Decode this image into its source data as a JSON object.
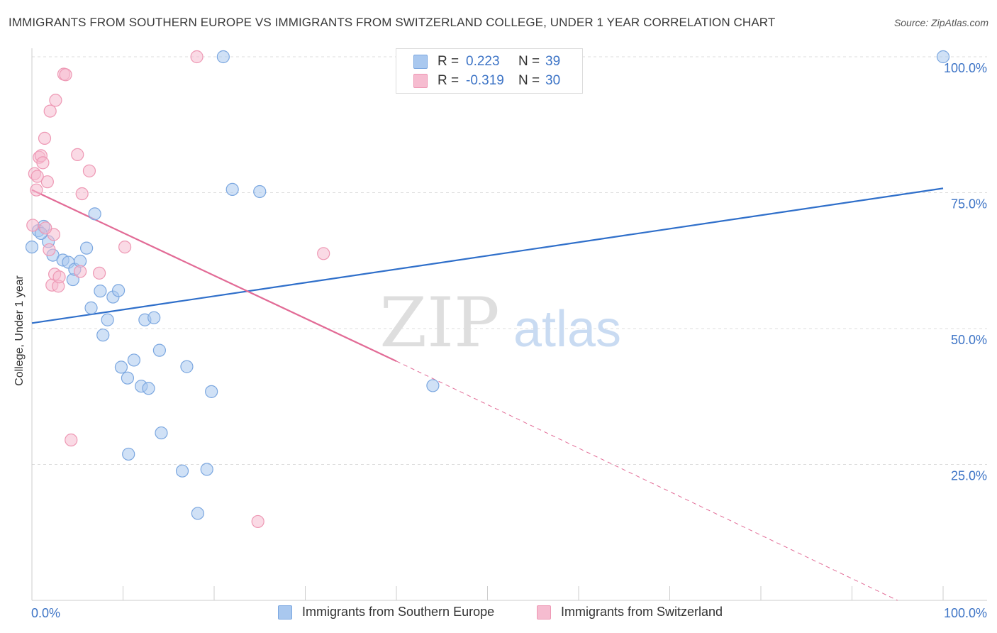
{
  "header": {
    "title": "IMMIGRANTS FROM SOUTHERN EUROPE VS IMMIGRANTS FROM SWITZERLAND COLLEGE, UNDER 1 YEAR CORRELATION CHART",
    "source": "Source: ZipAtlas.com"
  },
  "watermark": {
    "zip": "ZIP",
    "atlas": "atlas"
  },
  "legend": {
    "rows": [
      {
        "r_label": "R =",
        "r_value": "0.223",
        "n_label": "N =",
        "n_value": "39"
      },
      {
        "r_label": "R =",
        "r_value": "-0.319",
        "n_label": "N =",
        "n_value": "30"
      }
    ]
  },
  "bottom_legend": {
    "series1": "Immigrants from Southern Europe",
    "series2": "Immigrants from Switzerland"
  },
  "colors": {
    "blue_fill": "#a9c8ef",
    "blue_stroke": "#7ba7e0",
    "blue_line": "#2f6fca",
    "pink_fill": "#f6bcd0",
    "pink_stroke": "#ee98b4",
    "pink_line": "#e26b96",
    "tick_label": "#3d74c6",
    "grid": "#dddddd"
  },
  "chart_data": {
    "type": "scatter",
    "title": "IMMIGRANTS FROM SOUTHERN EUROPE VS IMMIGRANTS FROM SWITZERLAND COLLEGE, UNDER 1 YEAR CORRELATION CHART",
    "xlabel": "",
    "ylabel": "College, Under 1 year",
    "xlim": [
      0,
      100
    ],
    "ylim": [
      0,
      100
    ],
    "x_tick_labels": [
      "0.0%",
      "100.0%"
    ],
    "y_tick_labels": [
      "25.0%",
      "50.0%",
      "75.0%",
      "100.0%"
    ],
    "y_tick_values": [
      25,
      50,
      75,
      100
    ],
    "series": [
      {
        "name": "Immigrants from Southern Europe",
        "color": "blue",
        "points": [
          [
            0.0,
            65.0
          ],
          [
            0.7,
            68.0
          ],
          [
            1.3,
            68.8
          ],
          [
            1.8,
            66.0
          ],
          [
            2.3,
            63.5
          ],
          [
            3.4,
            62.6
          ],
          [
            4.0,
            62.2
          ],
          [
            4.5,
            59.0
          ],
          [
            4.7,
            60.9
          ],
          [
            5.3,
            62.4
          ],
          [
            6.0,
            64.8
          ],
          [
            6.5,
            53.8
          ],
          [
            6.9,
            71.1
          ],
          [
            7.5,
            56.9
          ],
          [
            7.8,
            48.8
          ],
          [
            8.3,
            51.6
          ],
          [
            8.9,
            55.8
          ],
          [
            9.5,
            57.0
          ],
          [
            9.8,
            42.9
          ],
          [
            10.5,
            40.9
          ],
          [
            10.6,
            26.9
          ],
          [
            11.2,
            44.2
          ],
          [
            12.0,
            39.4
          ],
          [
            12.4,
            51.6
          ],
          [
            12.8,
            39.0
          ],
          [
            13.4,
            52.0
          ],
          [
            14.0,
            46.0
          ],
          [
            14.2,
            30.8
          ],
          [
            16.5,
            23.8
          ],
          [
            17.0,
            43.0
          ],
          [
            18.2,
            16.0
          ],
          [
            19.2,
            24.1
          ],
          [
            19.7,
            38.4
          ],
          [
            21.0,
            100.0
          ],
          [
            22.0,
            75.6
          ],
          [
            25.0,
            75.2
          ],
          [
            44.0,
            39.5
          ],
          [
            100.0,
            100.0
          ],
          [
            1.0,
            67.5
          ]
        ]
      },
      {
        "name": "Immigrants from Switzerland",
        "color": "pink",
        "points": [
          [
            0.1,
            69.0
          ],
          [
            0.3,
            78.5
          ],
          [
            0.5,
            75.5
          ],
          [
            0.8,
            81.5
          ],
          [
            1.0,
            81.8
          ],
          [
            1.2,
            80.5
          ],
          [
            1.4,
            85.0
          ],
          [
            1.7,
            77.0
          ],
          [
            1.9,
            64.5
          ],
          [
            2.0,
            90.0
          ],
          [
            2.2,
            58.0
          ],
          [
            2.4,
            67.3
          ],
          [
            2.5,
            60.0
          ],
          [
            2.6,
            92.0
          ],
          [
            2.9,
            57.8
          ],
          [
            3.0,
            59.5
          ],
          [
            3.5,
            96.8
          ],
          [
            3.7,
            96.7
          ],
          [
            4.3,
            29.5
          ],
          [
            5.0,
            82.0
          ],
          [
            5.3,
            60.5
          ],
          [
            5.5,
            74.8
          ],
          [
            6.3,
            79.0
          ],
          [
            7.4,
            60.2
          ],
          [
            10.2,
            65.0
          ],
          [
            18.1,
            100.0
          ],
          [
            24.8,
            14.5
          ],
          [
            32.0,
            63.8
          ],
          [
            1.5,
            68.5
          ],
          [
            0.6,
            78.0
          ]
        ]
      }
    ],
    "trend_lines": [
      {
        "series": "Immigrants from Southern Europe",
        "x": [
          0,
          100
        ],
        "y": [
          51.0,
          75.8
        ],
        "style": "solid"
      },
      {
        "series": "Immigrants from Switzerland",
        "x": [
          0,
          40
        ],
        "y": [
          75.5,
          44.0
        ],
        "style": "solid"
      },
      {
        "series": "Immigrants from Switzerland",
        "x": [
          40,
          95
        ],
        "y": [
          44.0,
          0.0
        ],
        "style": "dashed"
      }
    ]
  }
}
